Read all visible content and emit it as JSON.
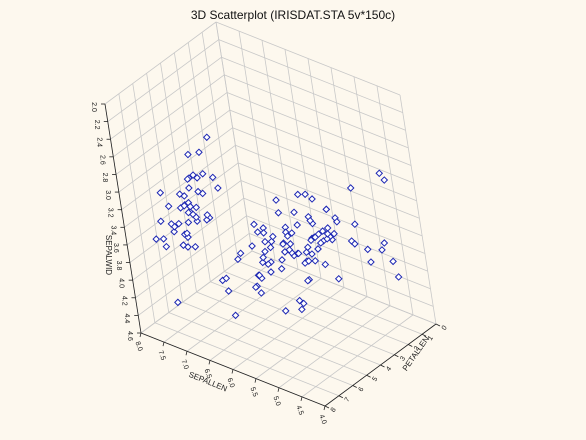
{
  "chart_data": {
    "type": "scatter",
    "title": "3D Scatterplot (IRISDAT.STA 5v*150c)",
    "xlabel": "SEPALLEN",
    "ylabel": "PETALLEN",
    "zlabel": "SEPALWID",
    "xlim": [
      4.0,
      8.0
    ],
    "ylim": [
      0,
      8
    ],
    "zlim": [
      2.0,
      4.6
    ],
    "x_ticks": [
      "4.0",
      "4.5",
      "5.0",
      "5.5",
      "6.0",
      "6.5",
      "7.0",
      "7.5",
      "8.0"
    ],
    "y_ticks": [
      "0",
      "1",
      "2",
      "3",
      "4",
      "5",
      "6",
      "7",
      "8"
    ],
    "z_ticks": [
      "2.0",
      "2.2",
      "2.4",
      "2.6",
      "2.8",
      "3.0",
      "3.2",
      "3.4",
      "3.6",
      "3.8",
      "4.0",
      "4.2",
      "4.4",
      "4.6"
    ],
    "grid": true,
    "marker_color": "#1e28b4",
    "points": [
      {
        "x": 5.1,
        "y": 1.4,
        "z": 3.5
      },
      {
        "x": 4.9,
        "y": 1.4,
        "z": 3.0
      },
      {
        "x": 4.7,
        "y": 1.3,
        "z": 3.2
      },
      {
        "x": 4.6,
        "y": 1.5,
        "z": 3.1
      },
      {
        "x": 5.0,
        "y": 1.4,
        "z": 3.6
      },
      {
        "x": 5.4,
        "y": 1.7,
        "z": 3.9
      },
      {
        "x": 4.6,
        "y": 1.4,
        "z": 3.4
      },
      {
        "x": 5.0,
        "y": 1.5,
        "z": 3.4
      },
      {
        "x": 4.4,
        "y": 1.4,
        "z": 2.9
      },
      {
        "x": 4.9,
        "y": 1.5,
        "z": 3.1
      },
      {
        "x": 5.4,
        "y": 1.5,
        "z": 3.7
      },
      {
        "x": 4.8,
        "y": 1.6,
        "z": 3.4
      },
      {
        "x": 4.8,
        "y": 1.4,
        "z": 3.0
      },
      {
        "x": 4.3,
        "y": 1.1,
        "z": 3.0
      },
      {
        "x": 5.8,
        "y": 1.2,
        "z": 4.0
      },
      {
        "x": 5.7,
        "y": 1.5,
        "z": 4.4
      },
      {
        "x": 5.4,
        "y": 1.3,
        "z": 3.9
      },
      {
        "x": 5.1,
        "y": 1.4,
        "z": 3.5
      },
      {
        "x": 5.7,
        "y": 1.7,
        "z": 3.8
      },
      {
        "x": 5.1,
        "y": 1.5,
        "z": 3.8
      },
      {
        "x": 5.4,
        "y": 1.7,
        "z": 3.4
      },
      {
        "x": 5.1,
        "y": 1.5,
        "z": 3.7
      },
      {
        "x": 4.6,
        "y": 1.0,
        "z": 3.6
      },
      {
        "x": 5.1,
        "y": 1.7,
        "z": 3.3
      },
      {
        "x": 4.8,
        "y": 1.9,
        "z": 3.4
      },
      {
        "x": 5.0,
        "y": 1.6,
        "z": 3.0
      },
      {
        "x": 5.0,
        "y": 1.6,
        "z": 3.4
      },
      {
        "x": 5.2,
        "y": 1.5,
        "z": 3.5
      },
      {
        "x": 5.2,
        "y": 1.4,
        "z": 3.4
      },
      {
        "x": 4.7,
        "y": 1.6,
        "z": 3.2
      },
      {
        "x": 4.8,
        "y": 1.6,
        "z": 3.1
      },
      {
        "x": 5.4,
        "y": 1.5,
        "z": 3.4
      },
      {
        "x": 5.2,
        "y": 1.5,
        "z": 4.1
      },
      {
        "x": 5.5,
        "y": 1.4,
        "z": 4.2
      },
      {
        "x": 4.9,
        "y": 1.5,
        "z": 3.1
      },
      {
        "x": 5.0,
        "y": 1.2,
        "z": 3.2
      },
      {
        "x": 5.5,
        "y": 1.3,
        "z": 3.5
      },
      {
        "x": 4.9,
        "y": 1.4,
        "z": 3.6
      },
      {
        "x": 4.4,
        "y": 1.3,
        "z": 3.0
      },
      {
        "x": 5.1,
        "y": 1.5,
        "z": 3.4
      },
      {
        "x": 5.0,
        "y": 1.3,
        "z": 3.5
      },
      {
        "x": 4.5,
        "y": 1.3,
        "z": 2.3
      },
      {
        "x": 4.4,
        "y": 1.3,
        "z": 3.2
      },
      {
        "x": 5.0,
        "y": 1.6,
        "z": 3.5
      },
      {
        "x": 5.1,
        "y": 1.9,
        "z": 3.8
      },
      {
        "x": 4.8,
        "y": 1.4,
        "z": 3.0
      },
      {
        "x": 5.1,
        "y": 1.6,
        "z": 3.8
      },
      {
        "x": 4.6,
        "y": 1.4,
        "z": 3.2
      },
      {
        "x": 5.3,
        "y": 1.5,
        "z": 3.7
      },
      {
        "x": 5.0,
        "y": 1.4,
        "z": 3.3
      },
      {
        "x": 7.0,
        "y": 4.7,
        "z": 3.2
      },
      {
        "x": 6.4,
        "y": 4.5,
        "z": 3.2
      },
      {
        "x": 6.9,
        "y": 4.9,
        "z": 3.1
      },
      {
        "x": 5.5,
        "y": 4.0,
        "z": 2.3
      },
      {
        "x": 6.5,
        "y": 4.6,
        "z": 2.8
      },
      {
        "x": 5.7,
        "y": 4.5,
        "z": 2.8
      },
      {
        "x": 6.3,
        "y": 4.7,
        "z": 3.3
      },
      {
        "x": 4.9,
        "y": 3.3,
        "z": 2.4
      },
      {
        "x": 6.6,
        "y": 4.6,
        "z": 2.9
      },
      {
        "x": 5.2,
        "y": 3.9,
        "z": 2.7
      },
      {
        "x": 5.0,
        "y": 3.5,
        "z": 2.0
      },
      {
        "x": 5.9,
        "y": 4.2,
        "z": 3.0
      },
      {
        "x": 6.0,
        "y": 4.0,
        "z": 2.2
      },
      {
        "x": 6.1,
        "y": 4.7,
        "z": 2.9
      },
      {
        "x": 5.6,
        "y": 3.6,
        "z": 2.9
      },
      {
        "x": 6.7,
        "y": 4.4,
        "z": 3.1
      },
      {
        "x": 5.6,
        "y": 4.5,
        "z": 3.0
      },
      {
        "x": 5.8,
        "y": 4.1,
        "z": 2.7
      },
      {
        "x": 6.2,
        "y": 4.5,
        "z": 2.2
      },
      {
        "x": 5.6,
        "y": 3.9,
        "z": 2.5
      },
      {
        "x": 5.9,
        "y": 4.8,
        "z": 3.2
      },
      {
        "x": 6.1,
        "y": 4.0,
        "z": 2.8
      },
      {
        "x": 6.3,
        "y": 4.9,
        "z": 2.5
      },
      {
        "x": 6.1,
        "y": 4.7,
        "z": 2.8
      },
      {
        "x": 6.4,
        "y": 4.3,
        "z": 2.9
      },
      {
        "x": 6.6,
        "y": 4.4,
        "z": 3.0
      },
      {
        "x": 6.8,
        "y": 4.8,
        "z": 2.8
      },
      {
        "x": 6.7,
        "y": 5.0,
        "z": 3.0
      },
      {
        "x": 6.0,
        "y": 4.5,
        "z": 2.9
      },
      {
        "x": 5.7,
        "y": 3.5,
        "z": 2.6
      },
      {
        "x": 5.5,
        "y": 3.8,
        "z": 2.4
      },
      {
        "x": 5.5,
        "y": 3.7,
        "z": 2.4
      },
      {
        "x": 5.8,
        "y": 3.9,
        "z": 2.7
      },
      {
        "x": 6.0,
        "y": 5.1,
        "z": 2.7
      },
      {
        "x": 5.4,
        "y": 4.5,
        "z": 3.0
      },
      {
        "x": 6.0,
        "y": 4.5,
        "z": 3.4
      },
      {
        "x": 6.7,
        "y": 4.7,
        "z": 3.1
      },
      {
        "x": 6.3,
        "y": 4.4,
        "z": 2.3
      },
      {
        "x": 5.6,
        "y": 4.1,
        "z": 3.0
      },
      {
        "x": 5.5,
        "y": 4.0,
        "z": 2.5
      },
      {
        "x": 5.5,
        "y": 4.4,
        "z": 2.6
      },
      {
        "x": 6.1,
        "y": 4.6,
        "z": 3.0
      },
      {
        "x": 5.8,
        "y": 4.0,
        "z": 2.6
      },
      {
        "x": 5.0,
        "y": 3.3,
        "z": 2.3
      },
      {
        "x": 5.6,
        "y": 4.2,
        "z": 2.7
      },
      {
        "x": 5.7,
        "y": 4.2,
        "z": 3.0
      },
      {
        "x": 5.7,
        "y": 4.2,
        "z": 2.9
      },
      {
        "x": 6.2,
        "y": 4.3,
        "z": 2.9
      },
      {
        "x": 5.1,
        "y": 3.0,
        "z": 2.5
      },
      {
        "x": 5.7,
        "y": 4.1,
        "z": 2.8
      },
      {
        "x": 6.3,
        "y": 6.0,
        "z": 3.3
      },
      {
        "x": 5.8,
        "y": 5.1,
        "z": 2.7
      },
      {
        "x": 7.1,
        "y": 5.9,
        "z": 3.0
      },
      {
        "x": 6.3,
        "y": 5.6,
        "z": 2.9
      },
      {
        "x": 6.5,
        "y": 5.8,
        "z": 3.0
      },
      {
        "x": 7.6,
        "y": 6.6,
        "z": 3.0
      },
      {
        "x": 4.9,
        "y": 4.5,
        "z": 2.5
      },
      {
        "x": 7.3,
        "y": 6.3,
        "z": 2.9
      },
      {
        "x": 6.7,
        "y": 5.8,
        "z": 2.5
      },
      {
        "x": 7.2,
        "y": 6.1,
        "z": 3.6
      },
      {
        "x": 6.5,
        "y": 5.1,
        "z": 3.2
      },
      {
        "x": 6.4,
        "y": 5.3,
        "z": 2.7
      },
      {
        "x": 6.8,
        "y": 5.5,
        "z": 3.0
      },
      {
        "x": 5.7,
        "y": 5.0,
        "z": 2.5
      },
      {
        "x": 5.8,
        "y": 5.1,
        "z": 2.8
      },
      {
        "x": 6.4,
        "y": 5.3,
        "z": 3.2
      },
      {
        "x": 6.5,
        "y": 5.5,
        "z": 3.0
      },
      {
        "x": 7.7,
        "y": 6.7,
        "z": 3.8
      },
      {
        "x": 7.7,
        "y": 6.9,
        "z": 2.6
      },
      {
        "x": 6.0,
        "y": 5.0,
        "z": 2.2
      },
      {
        "x": 6.9,
        "y": 5.7,
        "z": 3.2
      },
      {
        "x": 5.6,
        "y": 4.9,
        "z": 2.8
      },
      {
        "x": 7.7,
        "y": 6.7,
        "z": 2.8
      },
      {
        "x": 6.3,
        "y": 4.9,
        "z": 2.7
      },
      {
        "x": 6.7,
        "y": 5.7,
        "z": 3.3
      },
      {
        "x": 7.2,
        "y": 6.0,
        "z": 3.2
      },
      {
        "x": 6.2,
        "y": 4.8,
        "z": 2.8
      },
      {
        "x": 6.1,
        "y": 4.9,
        "z": 3.0
      },
      {
        "x": 6.4,
        "y": 5.6,
        "z": 2.8
      },
      {
        "x": 7.2,
        "y": 5.8,
        "z": 3.0
      },
      {
        "x": 7.4,
        "y": 6.1,
        "z": 2.8
      },
      {
        "x": 7.9,
        "y": 6.4,
        "z": 3.8
      },
      {
        "x": 6.4,
        "y": 5.6,
        "z": 2.8
      },
      {
        "x": 6.3,
        "y": 5.1,
        "z": 2.8
      },
      {
        "x": 6.1,
        "y": 5.6,
        "z": 2.6
      },
      {
        "x": 7.7,
        "y": 6.1,
        "z": 3.0
      },
      {
        "x": 6.3,
        "y": 5.6,
        "z": 3.4
      },
      {
        "x": 6.4,
        "y": 5.5,
        "z": 3.1
      },
      {
        "x": 6.0,
        "y": 4.8,
        "z": 3.0
      },
      {
        "x": 6.9,
        "y": 5.4,
        "z": 3.1
      },
      {
        "x": 6.7,
        "y": 5.6,
        "z": 3.1
      },
      {
        "x": 6.9,
        "y": 5.1,
        "z": 3.1
      },
      {
        "x": 5.8,
        "y": 5.1,
        "z": 2.7
      },
      {
        "x": 6.8,
        "y": 5.9,
        "z": 3.2
      },
      {
        "x": 6.7,
        "y": 5.7,
        "z": 3.3
      },
      {
        "x": 6.7,
        "y": 5.2,
        "z": 3.0
      },
      {
        "x": 6.3,
        "y": 5.0,
        "z": 2.5
      },
      {
        "x": 6.5,
        "y": 5.2,
        "z": 3.0
      },
      {
        "x": 6.2,
        "y": 5.4,
        "z": 3.4
      },
      {
        "x": 5.9,
        "y": 5.1,
        "z": 3.0
      }
    ]
  }
}
